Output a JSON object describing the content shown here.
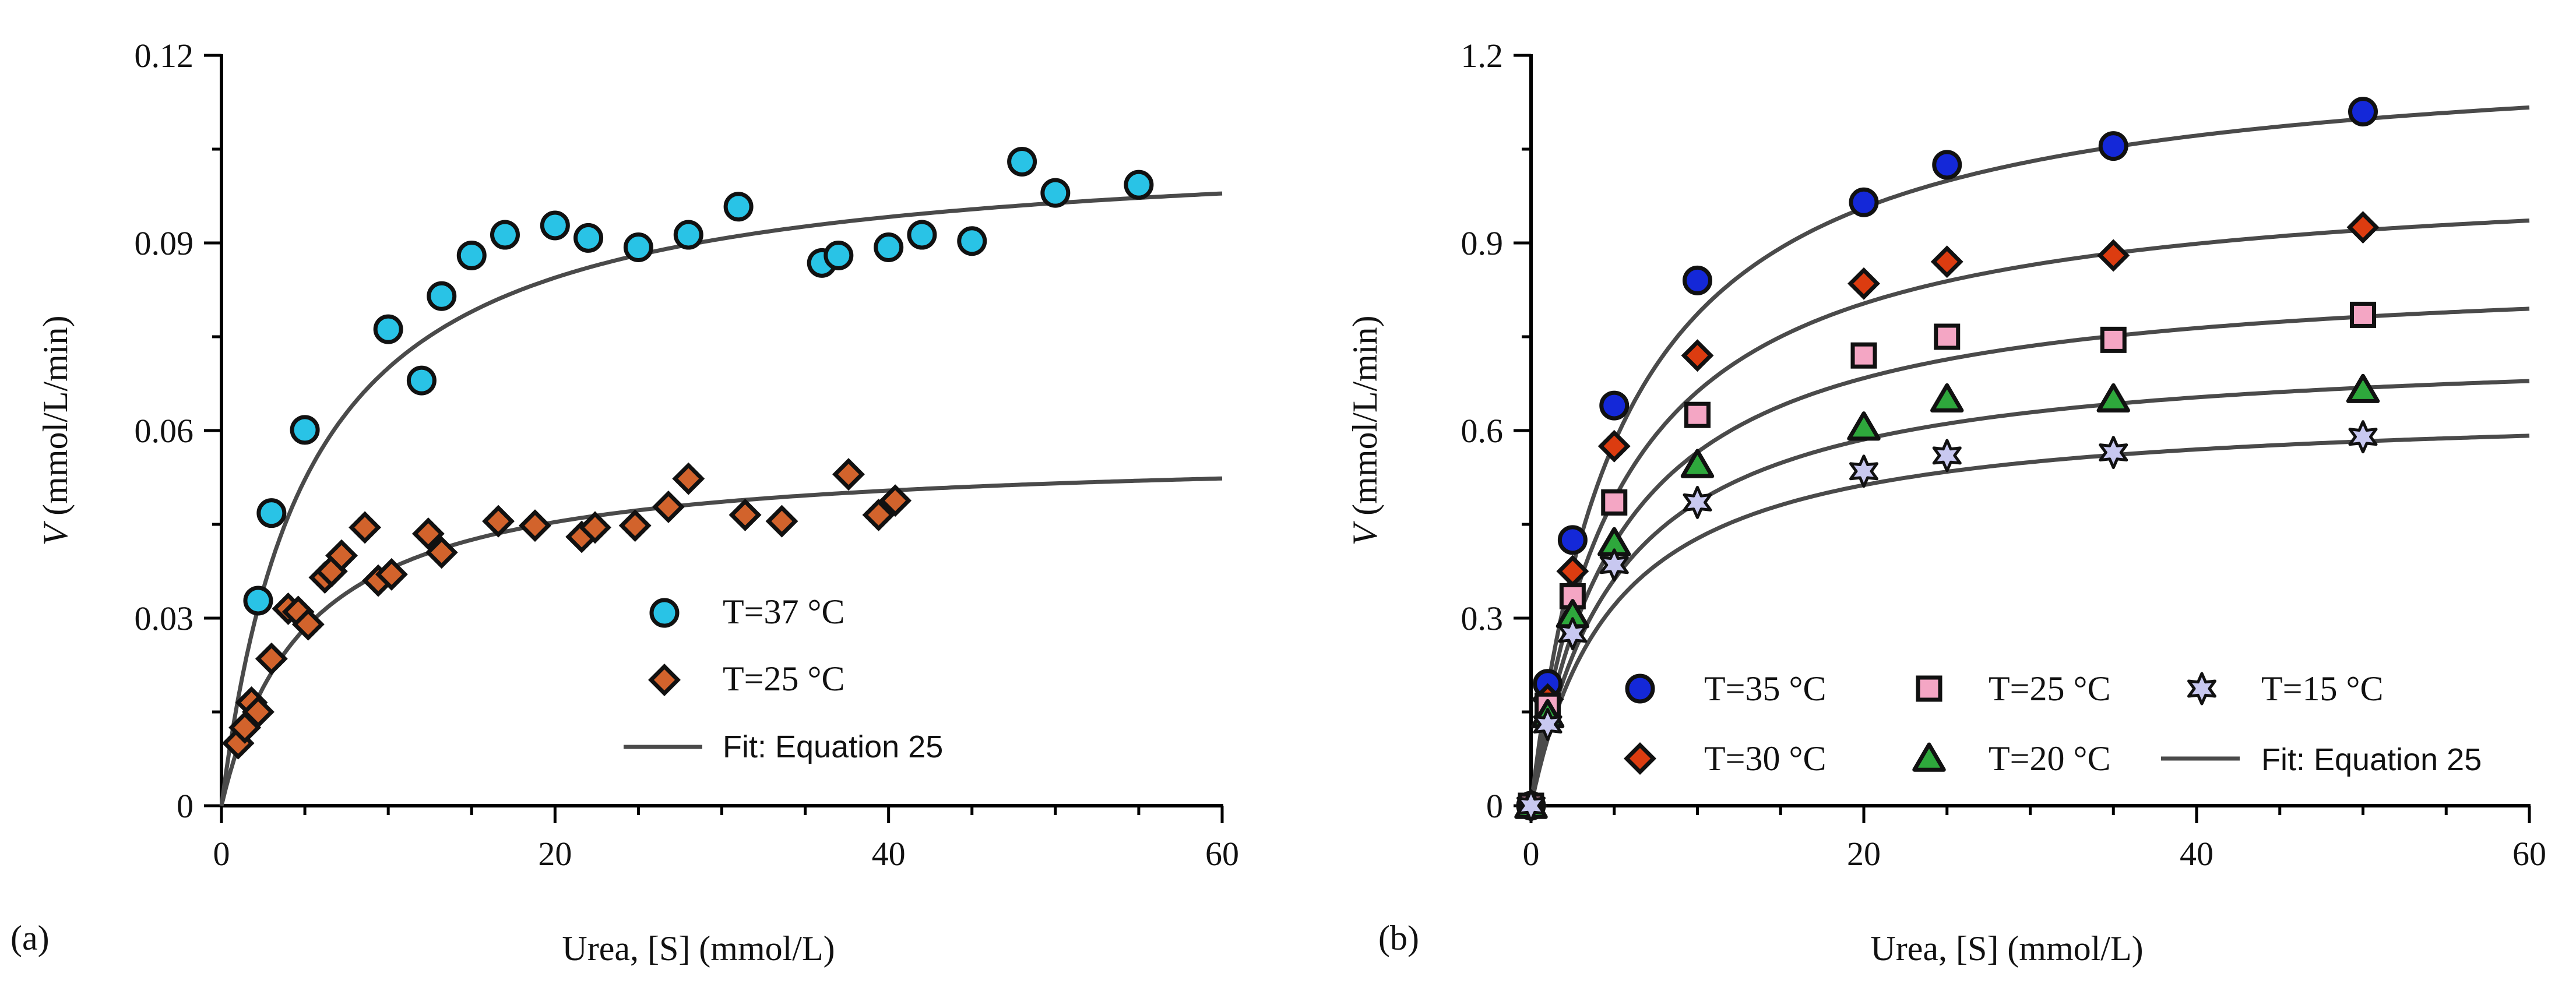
{
  "chart_data": [
    {
      "panel_label": "(a)",
      "type": "scatter",
      "xlabel": "Urea, [S] (mmol/L)",
      "ylabel_italic": "V",
      "ylabel_rest": " (mmol/L/min)",
      "xlim": [
        0,
        60
      ],
      "ylim": [
        0,
        0.12
      ],
      "xticks": [
        0,
        20,
        40,
        60
      ],
      "xtick_labels": [
        "0",
        "20",
        "40",
        "60"
      ],
      "yticks": [
        0,
        0.03,
        0.06,
        0.09,
        0.12
      ],
      "ytick_labels": [
        "0",
        "0.03",
        "0.06",
        "0.09",
        "0.12"
      ],
      "grid": false,
      "legend_position": "center-right",
      "series": [
        {
          "name": "T=37 °C",
          "marker": "circle",
          "color": "#29c3e6",
          "points": [
            [
              2.2,
              0.0328
            ],
            [
              3.0,
              0.0468
            ],
            [
              5.0,
              0.0601
            ],
            [
              10.0,
              0.0762
            ],
            [
              12.0,
              0.068
            ],
            [
              13.2,
              0.0815
            ],
            [
              15.0,
              0.088
            ],
            [
              17.0,
              0.0913
            ],
            [
              20.0,
              0.0928
            ],
            [
              22.0,
              0.0908
            ],
            [
              25.0,
              0.0893
            ],
            [
              28.0,
              0.0913
            ],
            [
              31.0,
              0.0958
            ],
            [
              36.0,
              0.0868
            ],
            [
              37.0,
              0.088
            ],
            [
              40.0,
              0.0893
            ],
            [
              42.0,
              0.0913
            ],
            [
              45.0,
              0.0903
            ],
            [
              48.0,
              0.103
            ],
            [
              50.0,
              0.098
            ],
            [
              55.0,
              0.0993
            ]
          ]
        },
        {
          "name": "T=25 °C",
          "marker": "diamond",
          "color": "#d2632c",
          "points": [
            [
              1.0,
              0.01
            ],
            [
              1.4,
              0.0125
            ],
            [
              1.8,
              0.0165
            ],
            [
              2.2,
              0.015
            ],
            [
              3.0,
              0.0235
            ],
            [
              4.0,
              0.0315
            ],
            [
              4.6,
              0.031
            ],
            [
              5.2,
              0.029
            ],
            [
              6.2,
              0.0365
            ],
            [
              6.6,
              0.0375
            ],
            [
              7.2,
              0.04
            ],
            [
              8.6,
              0.0445
            ],
            [
              9.4,
              0.036
            ],
            [
              10.2,
              0.037
            ],
            [
              12.4,
              0.0435
            ],
            [
              13.2,
              0.0405
            ],
            [
              16.6,
              0.0455
            ],
            [
              18.8,
              0.0448
            ],
            [
              21.6,
              0.043
            ],
            [
              22.4,
              0.0445
            ],
            [
              24.8,
              0.0448
            ],
            [
              26.8,
              0.0478
            ],
            [
              28.0,
              0.0523
            ],
            [
              31.4,
              0.0465
            ],
            [
              33.6,
              0.0455
            ],
            [
              37.6,
              0.053
            ],
            [
              39.4,
              0.0465
            ],
            [
              40.4,
              0.0488
            ]
          ]
        }
      ],
      "fits": [
        {
          "name": "Fit: Equation 25",
          "vmax": 0.1064,
          "km": 5.2,
          "color": "#4a4a4a"
        },
        {
          "vmax": 0.0567,
          "km": 5.0,
          "color": "#4a4a4a"
        }
      ],
      "legend": [
        {
          "label": "T=37 °C",
          "marker": "circle",
          "color": "#29c3e6"
        },
        {
          "label": "T=25 °C",
          "marker": "diamond",
          "color": "#d2632c"
        },
        {
          "label": "Fit: Equation 25",
          "marker": "line",
          "color": "#4a4a4a"
        }
      ]
    },
    {
      "panel_label": "(b)",
      "type": "scatter",
      "xlabel": "Urea, [S] (mmol/L)",
      "ylabel_italic": "V",
      "ylabel_rest": " (mmol/L/min)",
      "xlim": [
        0,
        60
      ],
      "ylim": [
        0,
        1.2
      ],
      "xticks": [
        0,
        20,
        40,
        60
      ],
      "xtick_labels": [
        "0",
        "20",
        "40",
        "60"
      ],
      "yticks": [
        0,
        0.3,
        0.6,
        0.9,
        1.2
      ],
      "ytick_labels": [
        "0",
        "0.3",
        "0.6",
        "0.9",
        "1.2"
      ],
      "grid": false,
      "legend_position": "bottom-right",
      "series": [
        {
          "name": "T=35 °C",
          "marker": "circle",
          "color": "#1428d8",
          "points": [
            [
              0,
              0.0
            ],
            [
              1,
              0.195
            ],
            [
              2.5,
              0.425
            ],
            [
              5,
              0.64
            ],
            [
              10,
              0.84
            ],
            [
              20,
              0.965
            ],
            [
              25,
              1.025
            ],
            [
              35,
              1.055
            ],
            [
              50,
              1.11
            ]
          ]
        },
        {
          "name": "T=30 °C",
          "marker": "diamond",
          "color": "#dc3c10",
          "points": [
            [
              0,
              0.0
            ],
            [
              1,
              0.17
            ],
            [
              2.5,
              0.375
            ],
            [
              5,
              0.575
            ],
            [
              10,
              0.72
            ],
            [
              20,
              0.835
            ],
            [
              25,
              0.87
            ],
            [
              35,
              0.88
            ],
            [
              50,
              0.925
            ]
          ]
        },
        {
          "name": "T=25 °C",
          "marker": "square",
          "color": "#f4a6c4",
          "points": [
            [
              0,
              0.0
            ],
            [
              1,
              0.16
            ],
            [
              2.5,
              0.335
            ],
            [
              5,
              0.485
            ],
            [
              10,
              0.625
            ],
            [
              20,
              0.72
            ],
            [
              25,
              0.75
            ],
            [
              35,
              0.745
            ],
            [
              50,
              0.785
            ]
          ]
        },
        {
          "name": "T=20 °C",
          "marker": "triangle",
          "color": "#2ea83c",
          "points": [
            [
              0,
              0.0
            ],
            [
              1,
              0.145
            ],
            [
              2.5,
              0.305
            ],
            [
              5,
              0.42
            ],
            [
              10,
              0.545
            ],
            [
              20,
              0.605
            ],
            [
              25,
              0.65
            ],
            [
              35,
              0.65
            ],
            [
              50,
              0.665
            ]
          ]
        },
        {
          "name": "T=15 °C",
          "marker": "star",
          "color": "#c8c8f0",
          "points": [
            [
              0,
              0.0
            ],
            [
              1,
              0.13
            ],
            [
              2.5,
              0.275
            ],
            [
              5,
              0.385
            ],
            [
              10,
              0.485
            ],
            [
              20,
              0.535
            ],
            [
              25,
              0.56
            ],
            [
              35,
              0.565
            ],
            [
              50,
              0.59
            ]
          ]
        }
      ],
      "fits": [
        {
          "name": "Fit: Equation 25",
          "vmax": 1.219,
          "km": 5.5,
          "color": "#4a4a4a"
        },
        {
          "vmax": 1.02,
          "km": 5.4,
          "color": "#4a4a4a"
        },
        {
          "vmax": 0.865,
          "km": 5.3,
          "color": "#4a4a4a"
        },
        {
          "vmax": 0.738,
          "km": 5.2,
          "color": "#4a4a4a"
        },
        {
          "vmax": 0.641,
          "km": 5.0,
          "color": "#4a4a4a"
        }
      ],
      "legend": [
        {
          "label": "T=35 °C",
          "marker": "circle",
          "color": "#1428d8"
        },
        {
          "label": "T=25 °C",
          "marker": "square",
          "color": "#f4a6c4"
        },
        {
          "label": "T=15 °C",
          "marker": "star",
          "color": "#c8c8f0"
        },
        {
          "label": "T=30 °C",
          "marker": "diamond",
          "color": "#dc3c10"
        },
        {
          "label": "T=20 °C",
          "marker": "triangle",
          "color": "#2ea83c"
        },
        {
          "label": "Fit: Equation 25",
          "marker": "line",
          "color": "#4a4a4a"
        }
      ]
    }
  ]
}
